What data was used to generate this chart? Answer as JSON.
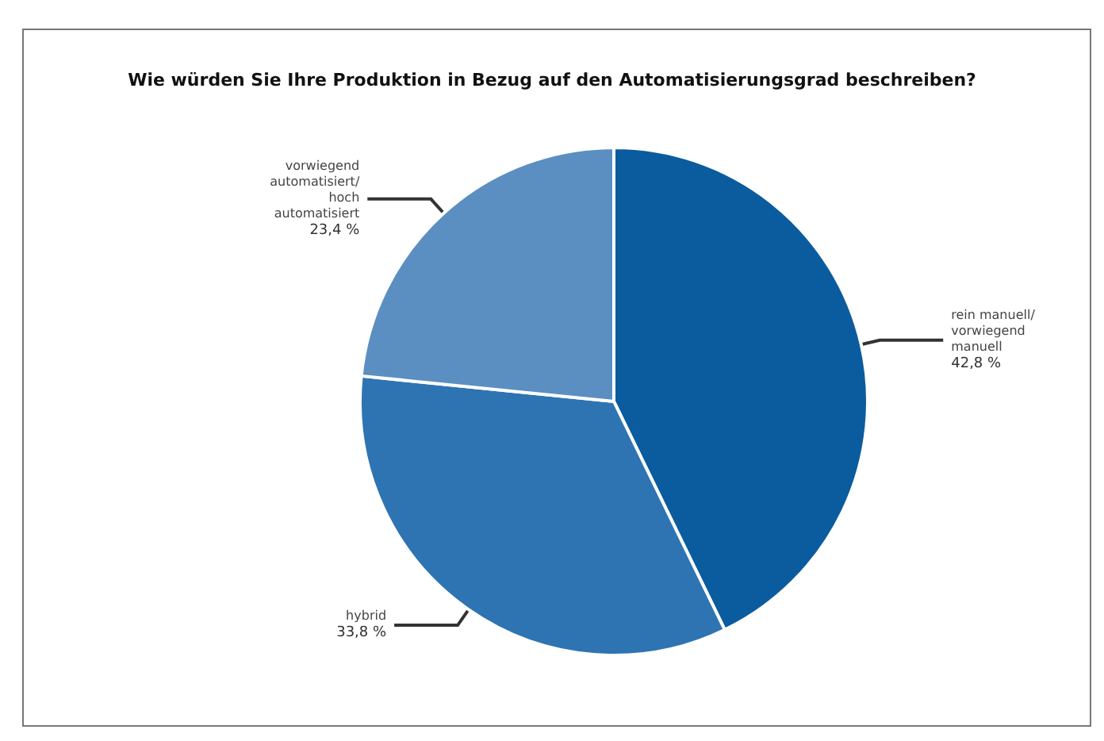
{
  "chart_data": {
    "type": "pie",
    "title": "Wie würden Sie Ihre Produktion in Bezug auf den Automatisierungsgrad beschreiben?",
    "categories": [
      "rein manuell/ vorwiegend manuell",
      "hybrid",
      "vorwiegend automatisiert/ hoch automatisiert"
    ],
    "values": [
      42.8,
      33.8,
      23.4
    ],
    "value_labels": [
      "42,8 %",
      "33,8 %",
      "23,4 %"
    ],
    "colors": [
      "#0b5c9e",
      "#2e74b3",
      "#5b8fc2"
    ],
    "legend": false
  }
}
